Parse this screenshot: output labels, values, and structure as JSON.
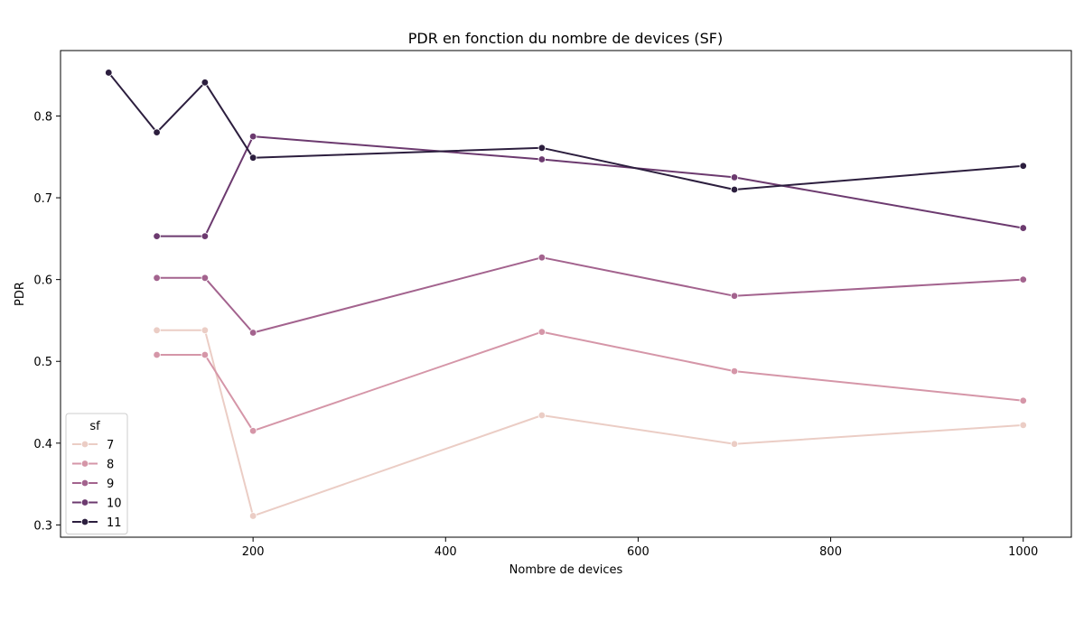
{
  "chart_data": {
    "type": "line",
    "title": "PDR en fonction du nombre de devices (SF)",
    "xlabel": "Nombre de devices",
    "ylabel": "PDR",
    "xlim": [
      0,
      1050
    ],
    "ylim": [
      0.285,
      0.88
    ],
    "xticks": [
      200,
      400,
      600,
      800,
      1000
    ],
    "yticks": [
      0.3,
      0.4,
      0.5,
      0.6,
      0.7,
      0.8
    ],
    "xtick_labels": [
      "200",
      "400",
      "600",
      "800",
      "1000"
    ],
    "ytick_labels": [
      "0.3",
      "0.4",
      "0.5",
      "0.6",
      "0.7",
      "0.8"
    ],
    "grid": false,
    "legend": {
      "title": "sf",
      "placement": "lower-left"
    },
    "series": [
      {
        "name": "7",
        "color": "#ebcdc5",
        "x": [
          100,
          150,
          200,
          500,
          700,
          1000
        ],
        "y": [
          0.538,
          0.538,
          0.311,
          0.434,
          0.399,
          0.422
        ]
      },
      {
        "name": "8",
        "color": "#d596a8",
        "x": [
          100,
          150,
          200,
          500,
          700,
          1000
        ],
        "y": [
          0.508,
          0.508,
          0.415,
          0.536,
          0.488,
          0.452
        ]
      },
      {
        "name": "9",
        "color": "#a3638e",
        "x": [
          100,
          150,
          200,
          500,
          700,
          1000
        ],
        "y": [
          0.602,
          0.602,
          0.535,
          0.627,
          0.58,
          0.6
        ]
      },
      {
        "name": "10",
        "color": "#6c3a6f",
        "x": [
          100,
          150,
          200,
          500,
          700,
          1000
        ],
        "y": [
          0.653,
          0.653,
          0.775,
          0.747,
          0.725,
          0.663
        ]
      },
      {
        "name": "11",
        "color": "#2c1e3e",
        "x": [
          50,
          100,
          150,
          200,
          500,
          700,
          1000
        ],
        "y": [
          0.853,
          0.78,
          0.841,
          0.749,
          0.761,
          0.71,
          0.739
        ]
      }
    ]
  }
}
